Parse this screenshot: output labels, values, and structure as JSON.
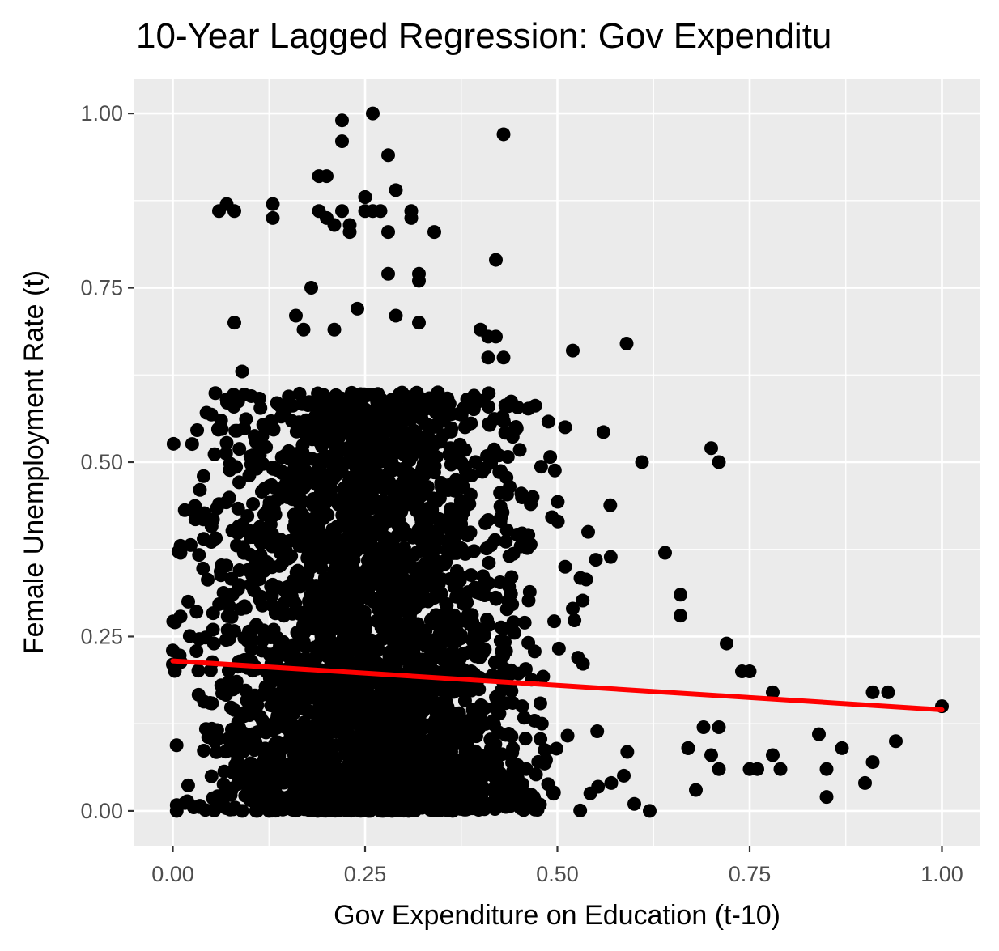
{
  "chart_data": {
    "type": "scatter",
    "title": "10-Year Lagged Regression: Gov Expenditu",
    "xlabel": "Gov Expenditure on Education (t-10)",
    "ylabel": "Female Unemployment Rate (t)",
    "xlim": [
      -0.05,
      1.05
    ],
    "ylim": [
      -0.05,
      1.05
    ],
    "x_ticks": [
      "0.00",
      "0.25",
      "0.50",
      "0.75",
      "1.00"
    ],
    "y_ticks": [
      "0.00",
      "0.25",
      "0.50",
      "0.75",
      "1.00"
    ],
    "grid": true,
    "legend": "none",
    "point_color": "#000000",
    "line_color": "#ff0000",
    "panel_color": "#ebebeb",
    "regression_line": {
      "x": [
        0.0,
        1.0
      ],
      "y": [
        0.215,
        0.145
      ]
    },
    "highlight_points": {
      "x": [
        0.26,
        0.22,
        0.43,
        0.22,
        0.28,
        0.19,
        0.2,
        0.29,
        0.28,
        0.25,
        0.23,
        0.32,
        0.06,
        0.07,
        0.08,
        0.13,
        0.13,
        0.19,
        0.2,
        0.21,
        0.22,
        0.23,
        0.25,
        0.25,
        0.26,
        0.27,
        0.31,
        0.31,
        0.34,
        0.42,
        0.28,
        0.32,
        0.18,
        0.24,
        0.16,
        0.08,
        0.29,
        0.32,
        0.17,
        0.21,
        0.59,
        0.52,
        0.4,
        0.41,
        0.42,
        0.43,
        0.41,
        0.09,
        0.07,
        0.61,
        0.71,
        0.7,
        0.51,
        0.38,
        0.54,
        0.55,
        0.51,
        0.52,
        0.04,
        0.06,
        0.01,
        0.01,
        0.04,
        0.02,
        0.0,
        0.0,
        0.64,
        0.66,
        0.66,
        0.72,
        0.74,
        0.75,
        0.78,
        0.91,
        0.93,
        1.0,
        0.84,
        0.87,
        0.94,
        0.9,
        0.91,
        0.85,
        0.85,
        0.79,
        0.76,
        0.75,
        0.67,
        0.67,
        0.68,
        0.69,
        0.7,
        0.71,
        0.71,
        0.78,
        0.62,
        0.6,
        0.57,
        0.45,
        0.29,
        0.39,
        0.42
      ],
      "y": [
        1.0,
        0.99,
        0.97,
        0.96,
        0.94,
        0.91,
        0.91,
        0.89,
        0.83,
        0.88,
        0.84,
        0.77,
        0.86,
        0.87,
        0.86,
        0.87,
        0.85,
        0.86,
        0.85,
        0.84,
        0.86,
        0.83,
        0.86,
        0.88,
        0.86,
        0.86,
        0.86,
        0.85,
        0.83,
        0.79,
        0.77,
        0.76,
        0.75,
        0.72,
        0.71,
        0.7,
        0.71,
        0.7,
        0.69,
        0.69,
        0.67,
        0.66,
        0.69,
        0.68,
        0.68,
        0.65,
        0.65,
        0.63,
        0.59,
        0.5,
        0.5,
        0.52,
        0.55,
        0.55,
        0.4,
        0.36,
        0.35,
        0.29,
        0.48,
        0.44,
        0.38,
        0.37,
        0.39,
        0.3,
        0.23,
        0.21,
        0.37,
        0.31,
        0.28,
        0.24,
        0.2,
        0.2,
        0.17,
        0.17,
        0.17,
        0.15,
        0.11,
        0.09,
        0.1,
        0.04,
        0.07,
        0.06,
        0.02,
        0.06,
        0.06,
        0.06,
        0.09,
        0.09,
        0.03,
        0.12,
        0.08,
        0.06,
        0.12,
        0.08,
        0.0,
        0.01,
        0.04,
        0.01,
        0.02,
        0.01,
        0.02
      ]
    },
    "dense_cloud": {
      "point_count": 3200,
      "seed": 7,
      "x_center": 0.25,
      "x_spread": 0.1,
      "x_range": [
        0.0,
        0.6
      ],
      "y_range": [
        0.0,
        0.6
      ],
      "y_skew": 1.6
    }
  }
}
